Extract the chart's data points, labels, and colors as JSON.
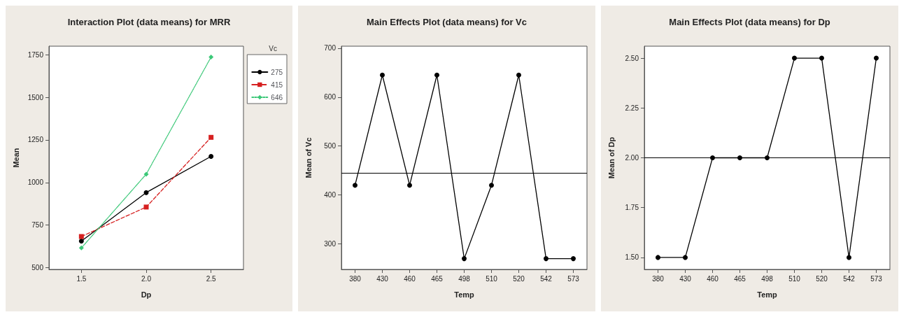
{
  "chart_data": [
    {
      "type": "line",
      "title": "Interaction Plot (data means) for MRR",
      "xlabel": "Dp",
      "ylabel": "Mean",
      "legend_title": "Vc",
      "categories": [
        "1.5",
        "2.0",
        "2.5"
      ],
      "series": [
        {
          "name": "275",
          "color": "#000000",
          "values": [
            656,
            941,
            1153
          ],
          "marker": "circle",
          "line_style": "solid"
        },
        {
          "name": "415",
          "color": "#d62020",
          "values": [
            683,
            856,
            1265
          ],
          "marker": "square",
          "line_style": "dashed"
        },
        {
          "name": "646",
          "color": "#3cc878",
          "values": [
            616,
            1049,
            1736
          ],
          "marker": "diamond",
          "line_style": "dotted"
        }
      ],
      "ylim": [
        490,
        1800
      ],
      "yticks": [
        500,
        750,
        1000,
        1250,
        1500,
        1750
      ],
      "grid": false,
      "legend": "top right"
    },
    {
      "type": "line",
      "title": "Main Effects Plot (data means) for Vc",
      "xlabel": "Temp",
      "ylabel": "Mean of Vc",
      "categories": [
        "380",
        "430",
        "460",
        "465",
        "498",
        "510",
        "520",
        "542",
        "573"
      ],
      "series": [
        {
          "color": "#000000",
          "values": [
            420,
            645,
            420,
            645,
            270,
            420,
            645,
            270,
            270
          ],
          "marker": "circle",
          "line_style": "solid"
        }
      ],
      "ylim": [
        248,
        704
      ],
      "yticks": [
        300,
        400,
        500,
        600,
        700
      ],
      "grid": false,
      "legend": false,
      "ref_lines": [
        {
          "axis": "y",
          "value": 445,
          "color": "#000000"
        }
      ]
    },
    {
      "type": "line",
      "title": "Main Effects Plot (data means) for Dp",
      "xlabel": "Temp",
      "ylabel": "Mean of Dp",
      "categories": [
        "380",
        "430",
        "460",
        "465",
        "498",
        "510",
        "520",
        "542",
        "573"
      ],
      "series": [
        {
          "color": "#000000",
          "values": [
            1.5,
            1.5,
            2.0,
            2.0,
            2.0,
            2.5,
            2.5,
            1.5,
            2.5
          ],
          "marker": "circle",
          "line_style": "solid"
        }
      ],
      "ylim": [
        1.44,
        2.56
      ],
      "yticks": [
        {
          "value": 1.5,
          "label": "1.50"
        },
        {
          "value": 1.75,
          "label": "1.75"
        },
        {
          "value": 2.0,
          "label": "2.00"
        },
        {
          "value": 2.25,
          "label": "2.25"
        },
        {
          "value": 2.5,
          "label": "2.50"
        }
      ],
      "grid": false,
      "legend": false,
      "ref_lines": [
        {
          "axis": "y",
          "value": 2.0,
          "color": "#000000"
        }
      ]
    }
  ]
}
